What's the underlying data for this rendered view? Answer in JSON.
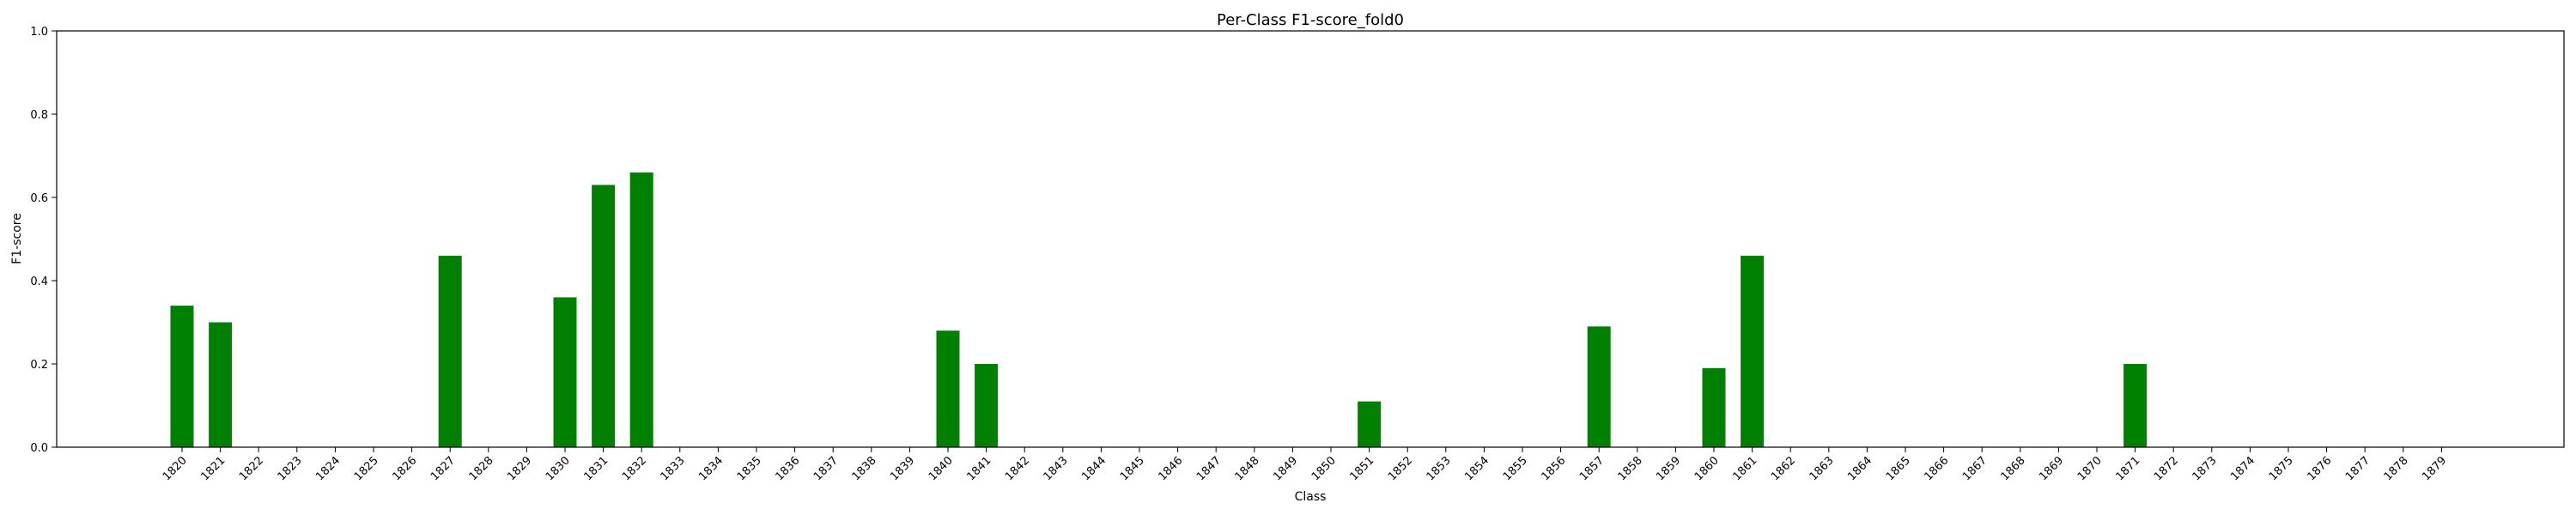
{
  "chart_data": {
    "type": "bar",
    "title": "Per-Class F1-score_fold0",
    "xlabel": "Class",
    "ylabel": "F1-score",
    "ylim": [
      0,
      1.0
    ],
    "yticks": [
      "0.0",
      "0.2",
      "0.4",
      "0.6",
      "0.8",
      "1.0"
    ],
    "grid": false,
    "bar_color": "#008000",
    "categories": [
      "1820",
      "1821",
      "1822",
      "1823",
      "1824",
      "1825",
      "1826",
      "1827",
      "1828",
      "1829",
      "1830",
      "1831",
      "1832",
      "1833",
      "1834",
      "1835",
      "1836",
      "1837",
      "1838",
      "1839",
      "1840",
      "1841",
      "1842",
      "1843",
      "1844",
      "1845",
      "1846",
      "1847",
      "1848",
      "1849",
      "1850",
      "1851",
      "1852",
      "1853",
      "1854",
      "1855",
      "1856",
      "1857",
      "1858",
      "1859",
      "1860",
      "1861",
      "1862",
      "1863",
      "1864",
      "1865",
      "1866",
      "1867",
      "1868",
      "1869",
      "1870",
      "1871",
      "1872",
      "1873",
      "1874",
      "1875",
      "1876",
      "1877",
      "1878",
      "1879"
    ],
    "values": [
      0.34,
      0.3,
      0,
      0,
      0,
      0,
      0,
      0.46,
      0,
      0,
      0.36,
      0.63,
      0.66,
      0,
      0,
      0,
      0,
      0,
      0,
      0,
      0.28,
      0.2,
      0,
      0,
      0,
      0,
      0,
      0,
      0,
      0,
      0,
      0.11,
      0,
      0,
      0,
      0,
      0,
      0.29,
      0,
      0,
      0.19,
      0.46,
      0,
      0,
      0,
      0,
      0,
      0,
      0,
      0,
      0,
      0.2,
      0,
      0,
      0,
      0,
      0,
      0,
      0,
      0
    ]
  }
}
